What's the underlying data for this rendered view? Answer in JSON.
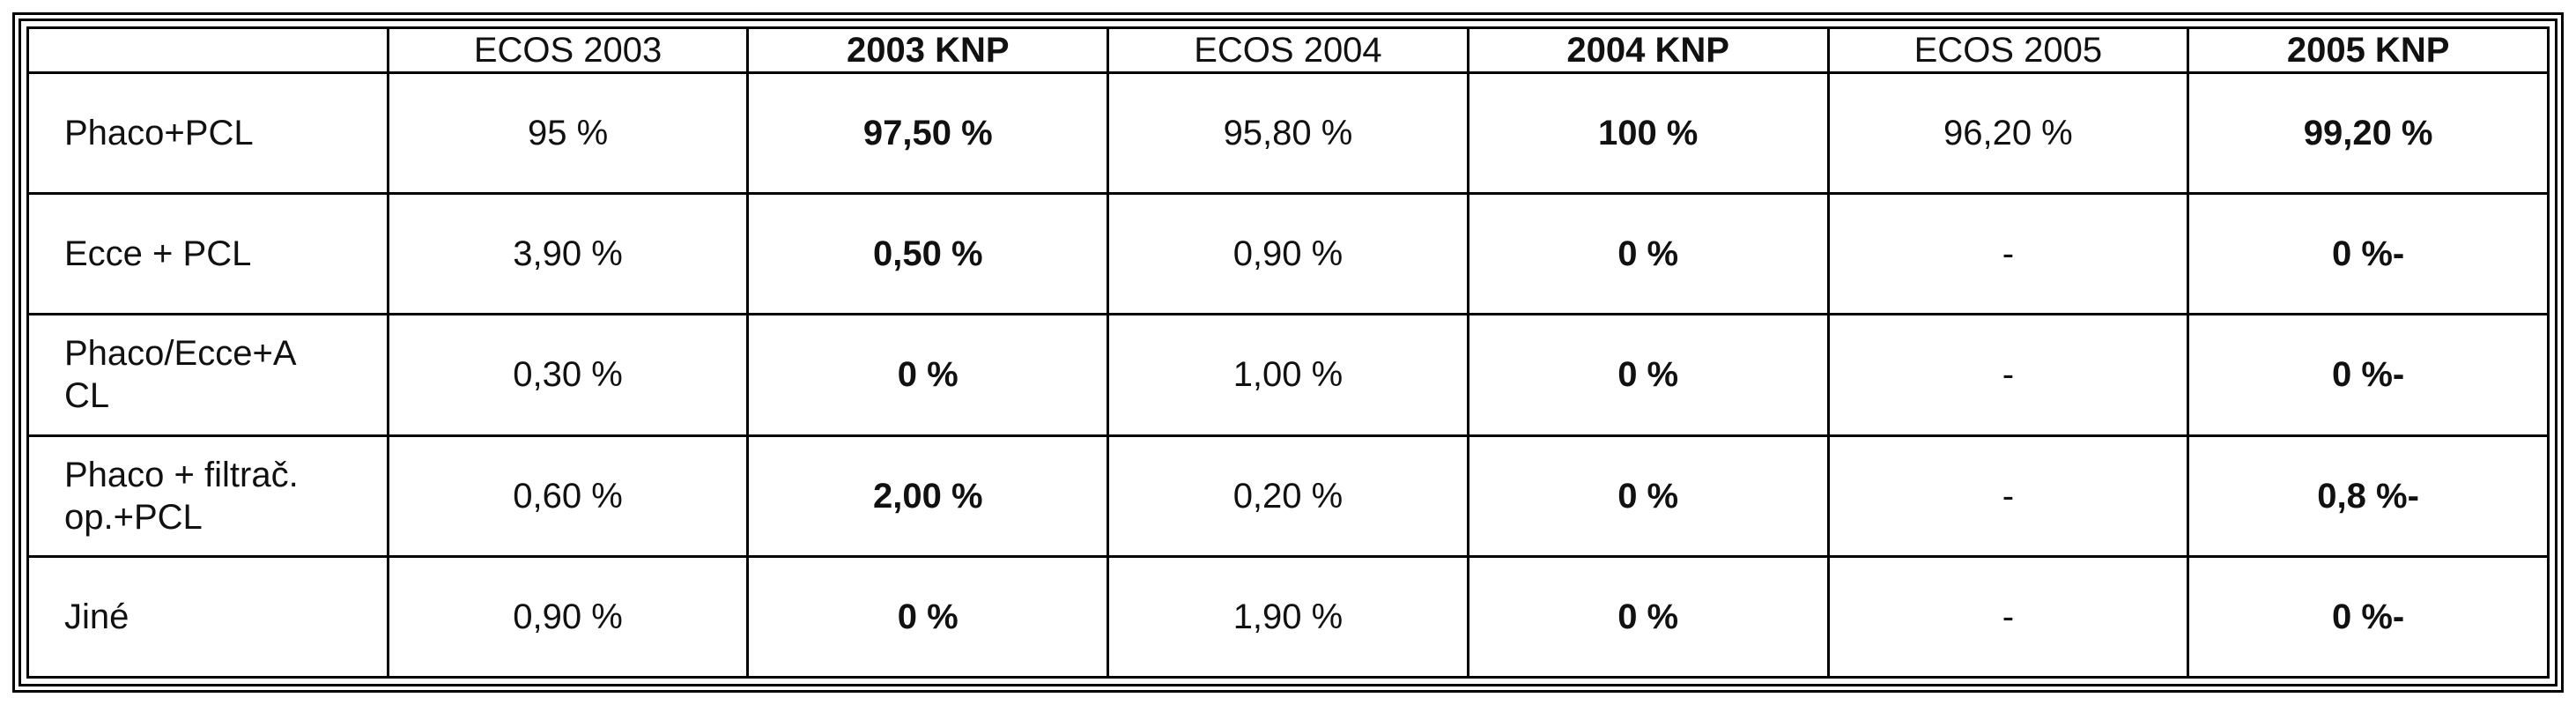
{
  "table": {
    "header": [
      "ECOS 2003",
      "2003 KNP",
      "ECOS 2004",
      "2004 KNP",
      "ECOS 2005",
      "2005 KNP"
    ],
    "rows": [
      [
        "Phaco+PCL",
        "95 %",
        "97,50 %",
        "95,80 %",
        "100 %",
        "96,20 %",
        "99,20 %"
      ],
      [
        "Ecce + PCL",
        "3,90 %",
        "0,50 %",
        "0,90 %",
        "0 %",
        "-",
        "0 %-"
      ],
      [
        "Phaco/Ecce+A\nCL",
        "0,30 %",
        "0 %",
        "1,00 %",
        "0 %",
        "-",
        "0 %-"
      ],
      [
        "Phaco + filtrač.\nop.+PCL",
        "0,60 %",
        "2,00 %",
        "0,20 %",
        "0 %",
        "-",
        "0,8 %-"
      ],
      [
        "Jiné",
        "0,90 %",
        "0 %",
        "1,90 %",
        "0 %",
        "-",
        "0 %-"
      ]
    ]
  }
}
